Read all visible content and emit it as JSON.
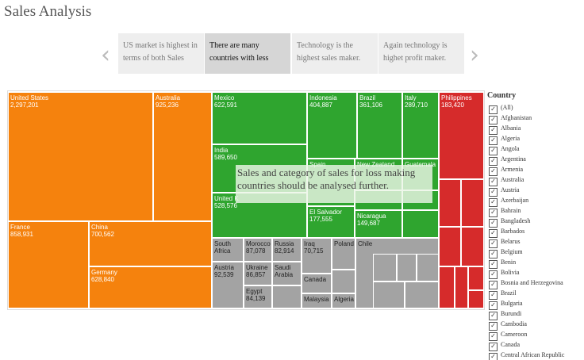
{
  "header": {
    "title": "Sales Analysis"
  },
  "story": {
    "points": [
      "US market is highest in terms of both Sales",
      "There are many countries with less",
      "Technology is the highest sales maker.",
      "Again technology is highet profit maker."
    ]
  },
  "treemap": {
    "cells": [
      {
        "label": "United States",
        "value": "2,297,201"
      },
      {
        "label": "Australia",
        "value": "925,236"
      },
      {
        "label": "France",
        "value": "858,931"
      },
      {
        "label": "China",
        "value": "700,562"
      },
      {
        "label": "Germany",
        "value": "628,840"
      },
      {
        "label": "Mexico",
        "value": "622,591"
      },
      {
        "label": "India",
        "value": "589,650"
      },
      {
        "label": "United K",
        "value": "528,576"
      },
      {
        "label": "Indonesia",
        "value": "404,887"
      },
      {
        "label": "Brazil",
        "value": "361,106"
      },
      {
        "label": "Italy",
        "value": "289,710"
      },
      {
        "label": "Spain"
      },
      {
        "label": "New Zealand"
      },
      {
        "label": "Guatemala"
      },
      {
        "label": "El Salvador",
        "value": "177,555"
      },
      {
        "label": "Nicaragua",
        "value": "149,687"
      },
      {
        "label": "South Africa"
      },
      {
        "label": "Morocco",
        "value": "87,078"
      },
      {
        "label": "Russia",
        "value": "82,914"
      },
      {
        "label": "Austria",
        "value": "92,539"
      },
      {
        "label": "Ukraine",
        "value": "86,857"
      },
      {
        "label": "Saudi Arabia"
      },
      {
        "label": "Egypt",
        "value": "84,139"
      },
      {
        "label": "Iraq",
        "value": "70,715"
      },
      {
        "label": "Poland"
      },
      {
        "label": "Canada"
      },
      {
        "label": "Malaysia"
      },
      {
        "label": "Algeria"
      },
      {
        "label": "Chile"
      },
      {
        "label": "Philippines",
        "value": "183,420"
      }
    ]
  },
  "annotation": "Sales and category of sales for loss making countries should be analysed further.",
  "legend": {
    "title": "Country",
    "items": [
      "(All)",
      "Afghanistan",
      "Albania",
      "Algeria",
      "Angola",
      "Argentina",
      "Armenia",
      "Australia",
      "Austria",
      "Azerbaijan",
      "Bahrain",
      "Bangladesh",
      "Barbados",
      "Belarus",
      "Belgium",
      "Benin",
      "Bolivia",
      "Bosnia and Herzegovina",
      "Brazil",
      "Bulgaria",
      "Burundi",
      "Cambodia",
      "Cameroon",
      "Canada",
      "Central African Republic"
    ]
  }
}
